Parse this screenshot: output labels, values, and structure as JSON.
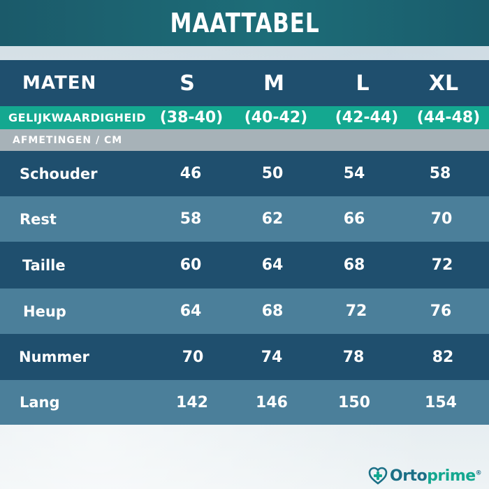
{
  "title": "MAATTABEL",
  "header": {
    "label": "MATEN",
    "sizes": [
      "S",
      "M",
      "L",
      "XL"
    ]
  },
  "equivalence": {
    "label": "GELIJKWAARDIGHEID",
    "values": [
      "(38-40)",
      "(40-42)",
      "(42-44)",
      "(44-48)"
    ]
  },
  "measurements_label": "AFMETINGEN / CM",
  "rows": [
    {
      "label": "Schouder",
      "values": [
        "46",
        "50",
        "54",
        "58"
      ]
    },
    {
      "label": "Rest",
      "values": [
        "58",
        "62",
        "66",
        "70"
      ]
    },
    {
      "label": "Taille",
      "values": [
        "60",
        "64",
        "68",
        "72"
      ]
    },
    {
      "label": "Heup",
      "values": [
        "64",
        "68",
        "72",
        "76"
      ]
    },
    {
      "label": "Nummer",
      "values": [
        "70",
        "74",
        "78",
        "82"
      ]
    },
    {
      "label": "Lang",
      "values": [
        "142",
        "146",
        "150",
        "154"
      ]
    }
  ],
  "brand": {
    "name_part1": "Orto",
    "name_part2": "prime",
    "registered": "®",
    "icon": "heart-plus-icon",
    "colors": {
      "primary": "#1b6f86",
      "accent": "#14a890"
    }
  }
}
